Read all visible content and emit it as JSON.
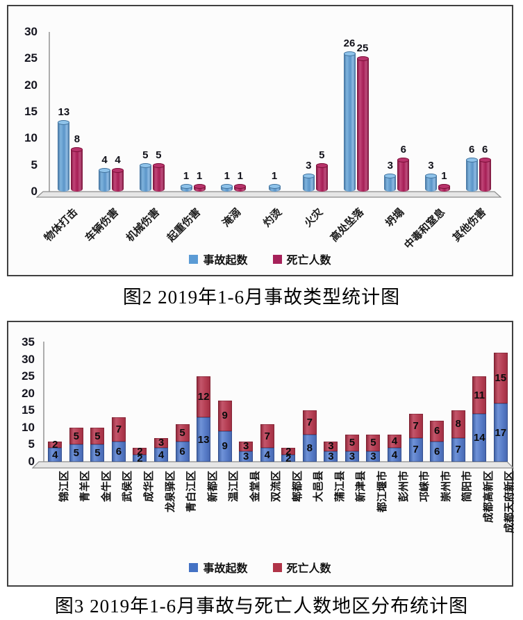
{
  "figure2": {
    "caption": "图2 2019年1-6月事故类型统计图"
  },
  "figure3": {
    "caption": "图3 2019年1-6月事故与死亡人数地区分布统计图"
  },
  "chart_data": [
    {
      "id": "figure2",
      "type": "bar",
      "subtype": "grouped-3d-cylinder",
      "title": "图2 2019年1-6月事故类型统计图",
      "categories": [
        "物体打击",
        "车辆伤害",
        "机械伤害",
        "起重伤害",
        "淹溺",
        "灼烫",
        "火灾",
        "高处坠落",
        "坍塌",
        "中毒和窒息",
        "其他伤害"
      ],
      "series": [
        {
          "name": "事故起数",
          "color": "#5B9BD5",
          "values": [
            13,
            4,
            5,
            1,
            1,
            1,
            3,
            26,
            3,
            3,
            6
          ]
        },
        {
          "name": "死亡人数",
          "color": "#A6215A",
          "values": [
            8,
            4,
            5,
            1,
            1,
            0,
            5,
            25,
            6,
            1,
            6
          ]
        }
      ],
      "ylim": [
        0,
        30
      ],
      "yticks": [
        0,
        5,
        10,
        15,
        20,
        25,
        30
      ],
      "grid": false,
      "data_labels": true,
      "legend_position": "bottom"
    },
    {
      "id": "figure3",
      "type": "bar",
      "subtype": "stacked",
      "title": "图3 2019年1-6月事故与死亡人数地区分布统计图",
      "categories": [
        "锦江区",
        "青羊区",
        "金牛区",
        "武侯区",
        "成华区",
        "龙泉驿区",
        "青白江区",
        "新都区",
        "温江区",
        "金堂县",
        "双流区",
        "郫都区",
        "大邑县",
        "蒲江县",
        "新津县",
        "都江堰市",
        "彭州市",
        "邛崃市",
        "崇州市",
        "简阳市",
        "成都高新区",
        "成都天府新区"
      ],
      "series": [
        {
          "name": "事故起数",
          "color": "#4472C4",
          "values": [
            4,
            5,
            5,
            6,
            2,
            4,
            6,
            13,
            9,
            3,
            4,
            2,
            8,
            3,
            3,
            3,
            4,
            7,
            6,
            7,
            14,
            17
          ]
        },
        {
          "name": "死亡人数",
          "color": "#B03448",
          "values": [
            2,
            5,
            5,
            7,
            2,
            3,
            5,
            12,
            9,
            3,
            7,
            2,
            7,
            3,
            5,
            5,
            4,
            7,
            6,
            8,
            11,
            15
          ]
        }
      ],
      "ylim": [
        0,
        35
      ],
      "yticks": [
        0,
        5,
        10,
        15,
        20,
        25,
        30,
        35
      ],
      "grid": false,
      "data_labels": true,
      "legend_position": "bottom"
    }
  ]
}
